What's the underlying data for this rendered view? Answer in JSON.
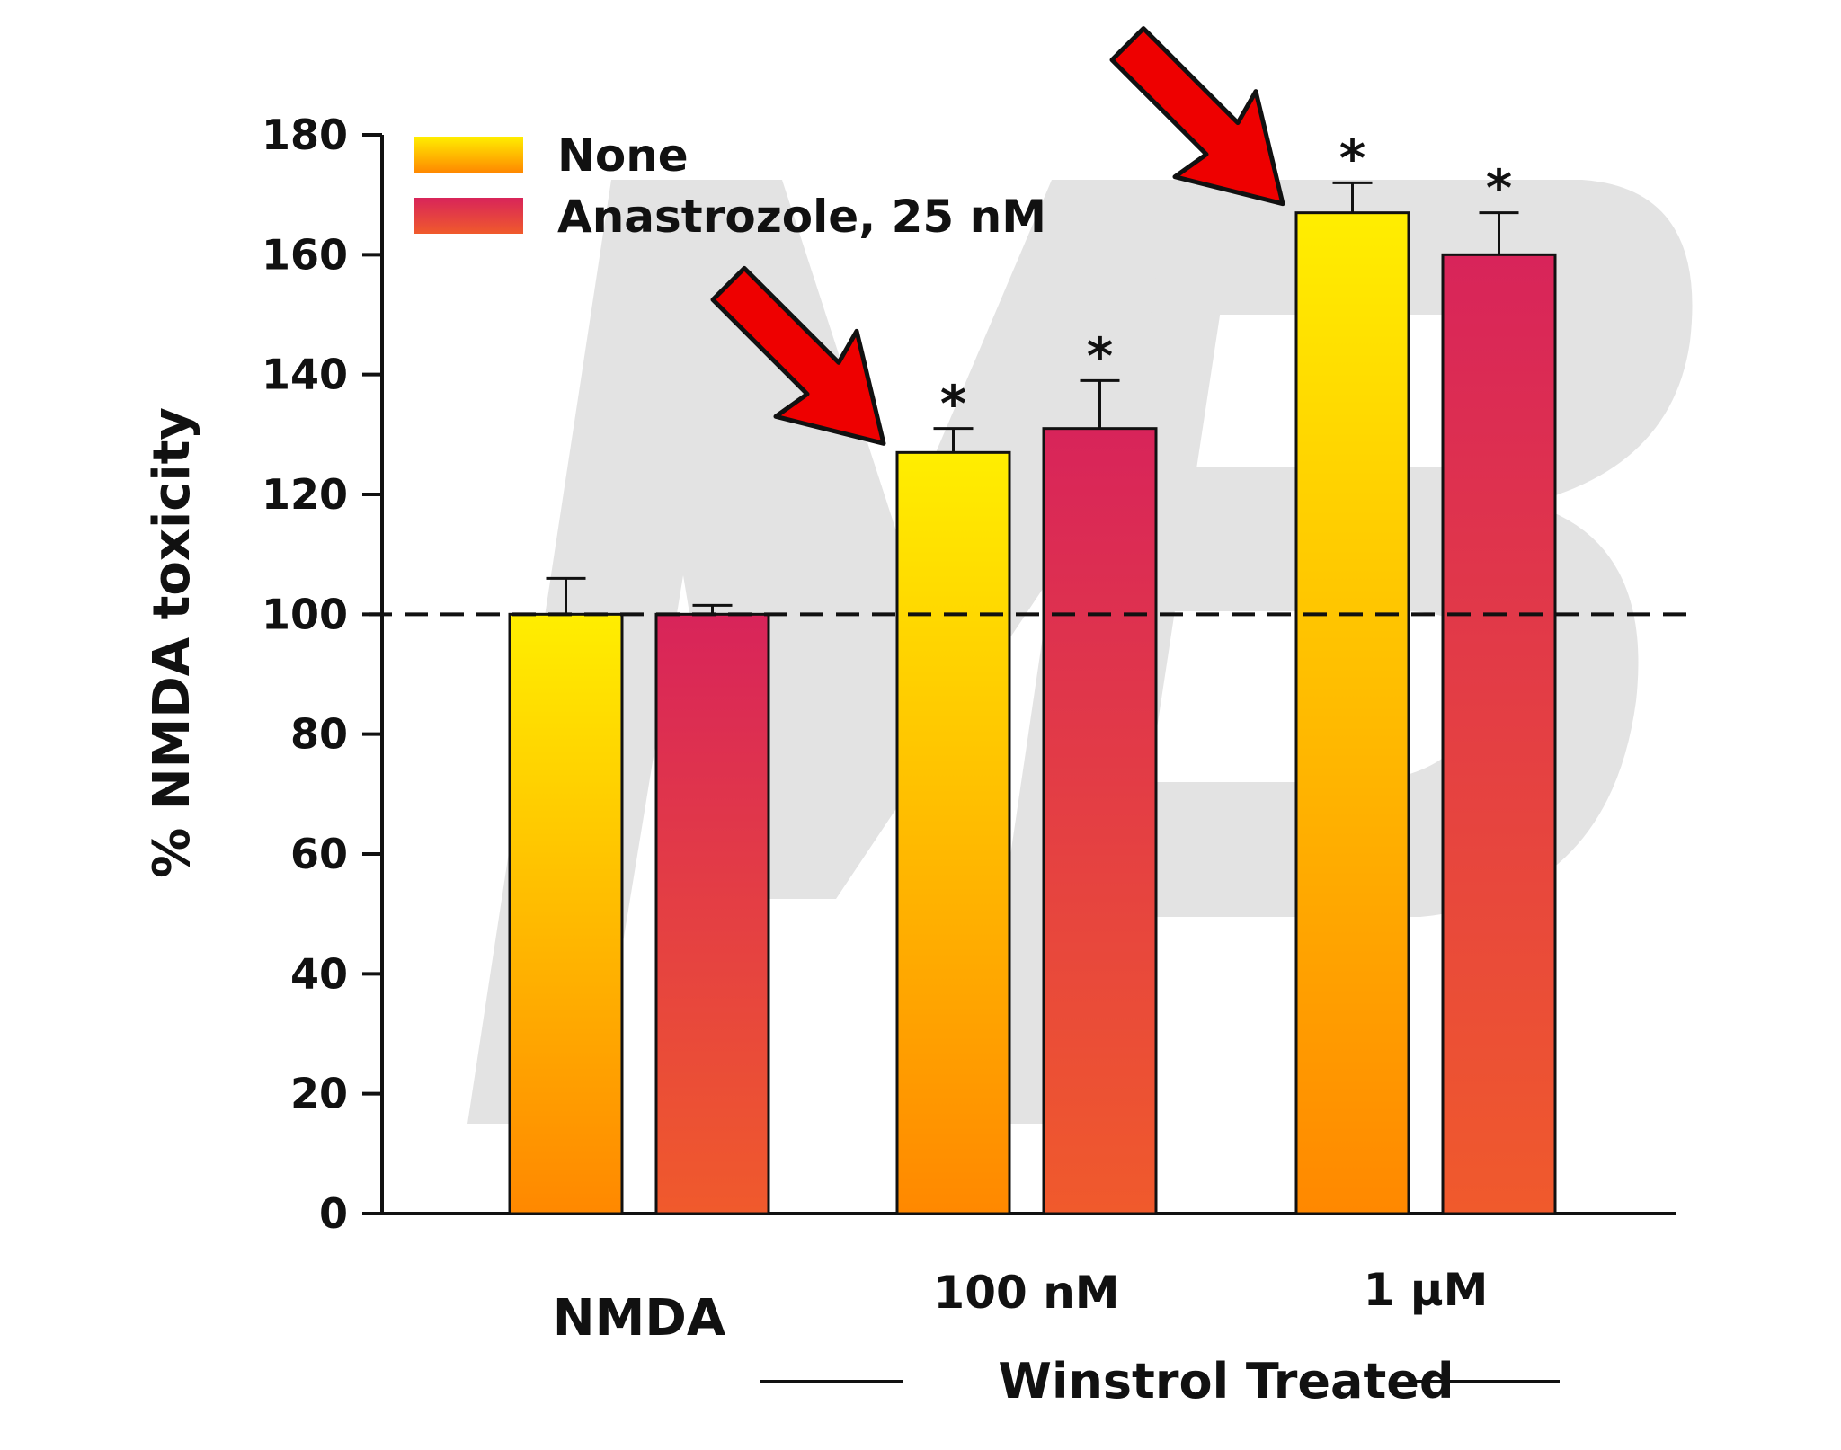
{
  "chart_data": {
    "type": "bar",
    "ylabel": "% NMDA toxicity",
    "ylim": [
      0,
      180
    ],
    "yticks": [
      0,
      20,
      40,
      60,
      80,
      100,
      120,
      140,
      160,
      180
    ],
    "reference_line": 100,
    "categories": [
      "NMDA",
      "100 nM",
      "1 μM"
    ],
    "group_label": "Winstrol Treated",
    "legend_position": "top-left",
    "series": [
      {
        "name": "None",
        "colors": [
          "#ffee00",
          "#ff8800"
        ],
        "values": [
          100,
          127,
          167
        ],
        "errors": [
          6,
          4,
          5
        ],
        "significant": [
          false,
          true,
          true
        ]
      },
      {
        "name": "Anastrozole, 25 nM",
        "colors": [
          "#d8245a",
          "#f05a2c"
        ],
        "values": [
          100,
          131,
          160
        ],
        "errors": [
          1.5,
          8,
          7
        ],
        "significant": [
          false,
          true,
          true
        ]
      }
    ],
    "annotations": {
      "star_symbol": "*",
      "arrows_on_series": "None",
      "arrows_on_categories": [
        "100 nM",
        "1 μM"
      ]
    }
  }
}
